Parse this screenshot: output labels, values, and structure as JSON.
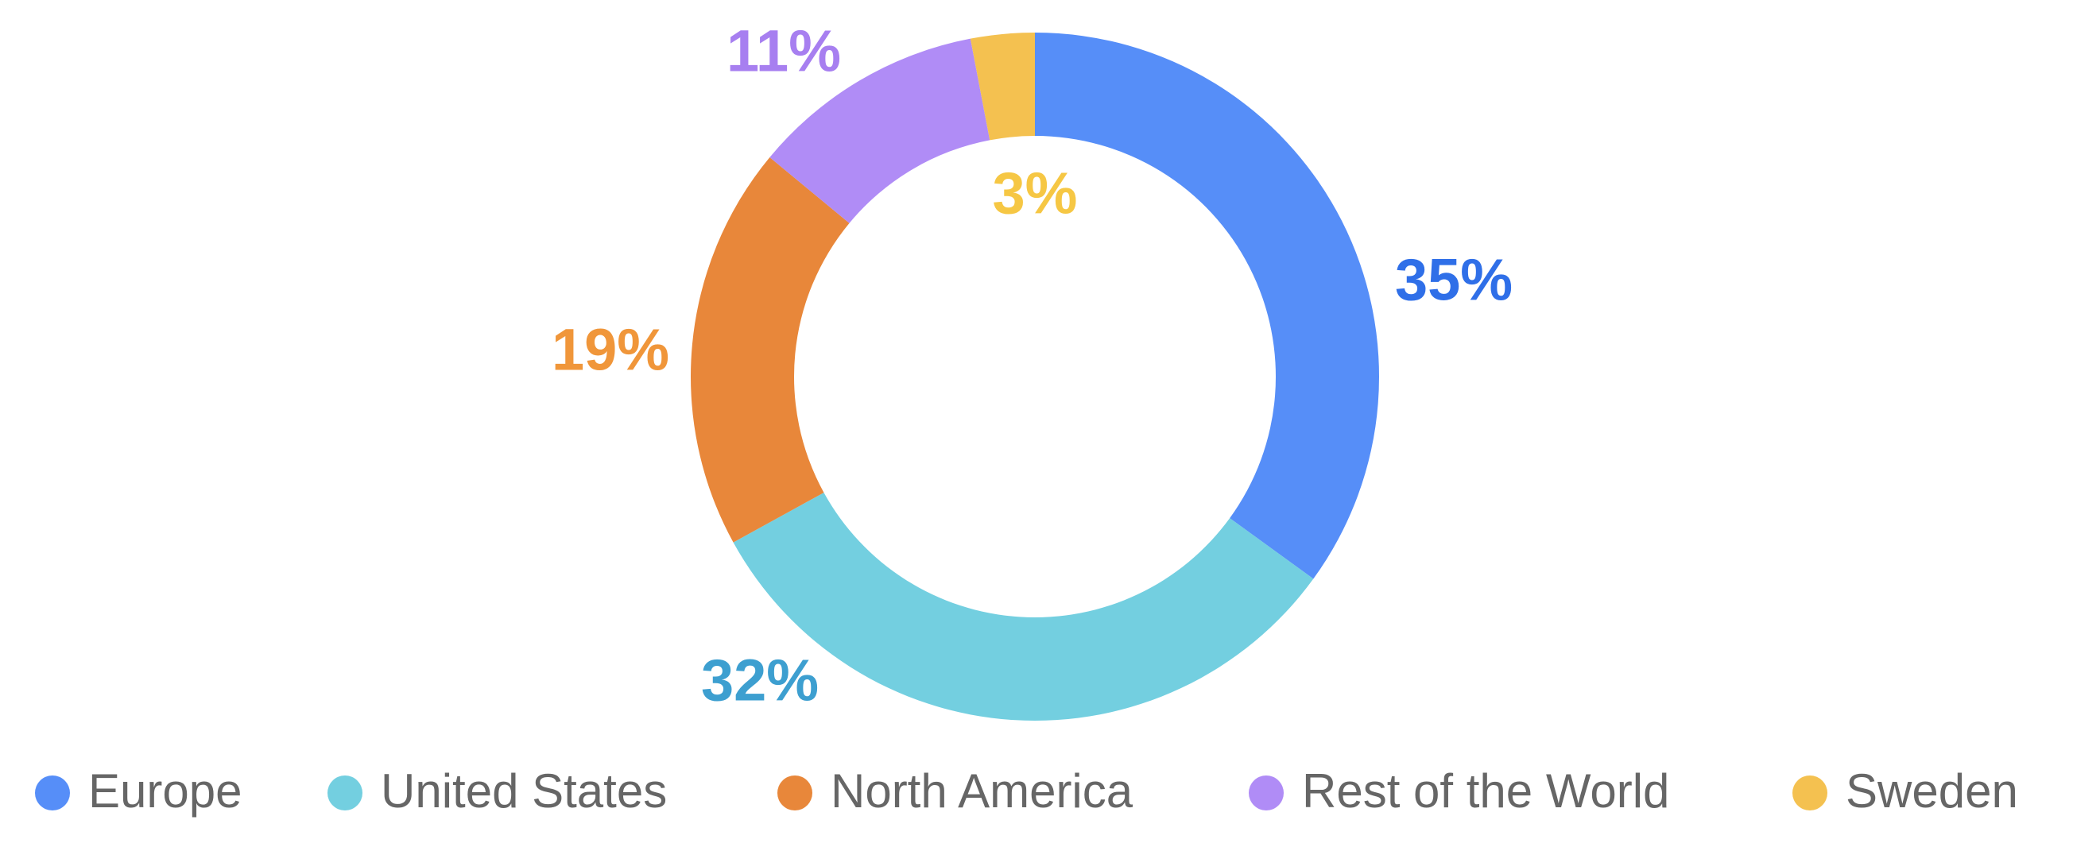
{
  "chart_data": {
    "type": "pie",
    "categories": [
      "Europe",
      "United States",
      "North America",
      "Rest of the World",
      "Sweden"
    ],
    "values": [
      35,
      32,
      19,
      11,
      3
    ],
    "value_labels": [
      "35%",
      "32%",
      "19%",
      "11%",
      "3%"
    ],
    "colors": [
      "#568ef8",
      "#73cfe0",
      "#e8873a",
      "#b08cf6",
      "#f4c150"
    ],
    "label_colors": [
      "#2f6fe8",
      "#3d9fd0",
      "#f0963a",
      "#a77ff0",
      "#f6c744"
    ],
    "donut": true,
    "legend": "bottom"
  }
}
